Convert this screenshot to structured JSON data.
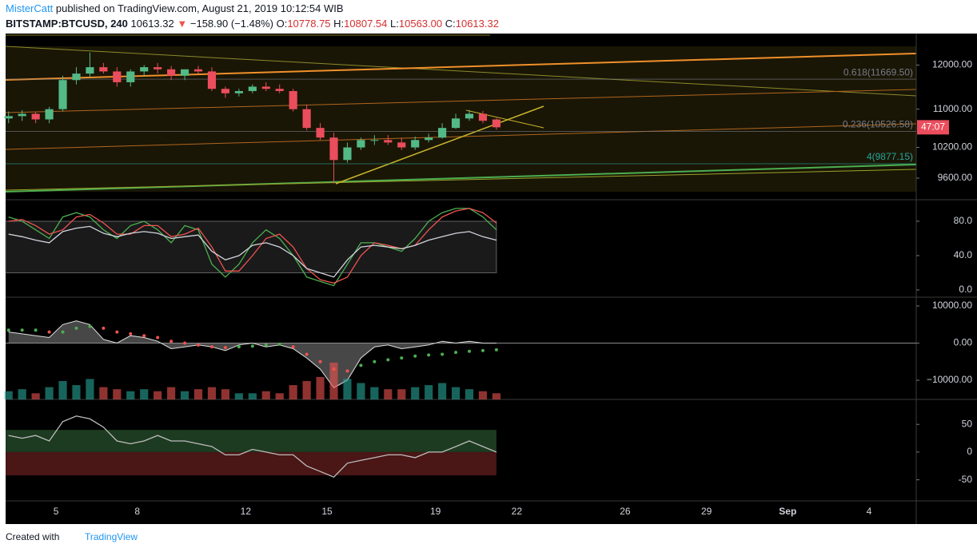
{
  "header": {
    "author": "MisterCatt",
    "published": "published on TradingView.com, August 21, 2019 10:12:54 WIB",
    "symbol": "BITSTAMP:BTCUSD, 240",
    "price": "10613.32",
    "arrow": "▼",
    "change": "−158.90 (−1.48%)",
    "ohlc": [
      {
        "label": "O:",
        "value": "10778.75"
      },
      {
        "label": "H:",
        "value": "10807.54"
      },
      {
        "label": "L:",
        "value": "10563.00"
      },
      {
        "label": "C:",
        "value": "10613.32"
      }
    ]
  },
  "footer": {
    "text": "Created with",
    "brand": "TradingView"
  },
  "chart_data": [
    {
      "type": "candlestick",
      "x": [
        3.25,
        3.75,
        4.25,
        4.75,
        5.25,
        5.75,
        6.25,
        6.75,
        7.25,
        7.75,
        8.25,
        8.75,
        9.25,
        9.75,
        10.25,
        10.75,
        11.25,
        11.75,
        12.25,
        12.75,
        13.25,
        13.75,
        14.25,
        14.75,
        15.25,
        15.75,
        16.25,
        16.75,
        17.25,
        17.75,
        18.25,
        18.75,
        19.25,
        19.75,
        20.25,
        20.75,
        21.25
      ],
      "open": [
        10800,
        10850,
        10900,
        10780,
        11000,
        11650,
        11800,
        11950,
        11850,
        11600,
        11850,
        11950,
        11900,
        11750,
        11900,
        11850,
        11450,
        11350,
        11400,
        11500,
        11450,
        11400,
        11000,
        10600,
        10400,
        9950,
        10200,
        10350,
        10350,
        10300,
        10200,
        10350,
        10400,
        10600,
        10800,
        10900,
        10778.75
      ],
      "high": [
        10950,
        10980,
        10950,
        11050,
        11750,
        11950,
        12300,
        12050,
        11950,
        11900,
        12000,
        12050,
        11980,
        11900,
        11980,
        11950,
        11500,
        11450,
        11550,
        11600,
        11550,
        11450,
        11100,
        10700,
        10500,
        10300,
        10400,
        10450,
        10450,
        10400,
        10420,
        10480,
        10700,
        10900,
        10980,
        10960,
        10807.54
      ],
      "low": [
        10700,
        10750,
        10700,
        10700,
        10950,
        11550,
        11700,
        11800,
        11500,
        11500,
        11750,
        11800,
        11650,
        11650,
        11800,
        11400,
        11250,
        11280,
        11350,
        11400,
        11350,
        10950,
        10550,
        10350,
        9500,
        9900,
        10150,
        10250,
        10250,
        10150,
        10150,
        10300,
        10380,
        10580,
        10750,
        10700,
        10563
      ],
      "close": [
        10850,
        10900,
        10780,
        11000,
        11650,
        11800,
        11950,
        11850,
        11600,
        11850,
        11950,
        11900,
        11750,
        11900,
        11850,
        11450,
        11350,
        11400,
        11500,
        11450,
        11400,
        11000,
        10600,
        10400,
        9950,
        10200,
        10350,
        10350,
        10300,
        10200,
        10350,
        10400,
        10600,
        10800,
        10900,
        10750,
        10613.32
      ],
      "up_color": "#53b987",
      "down_color": "#eb4d5c",
      "log_scale": true,
      "ylim": [
        9200,
        12730
      ],
      "yticks": [
        {
          "value": 9600,
          "label": "9600.00"
        },
        {
          "value": 10200,
          "label": "10200.00"
        },
        {
          "value": 11000,
          "label": "11000.00"
        },
        {
          "value": 12000,
          "label": "12000.00"
        }
      ],
      "xlim": [
        3.14,
        36.74
      ],
      "xticks": [
        5,
        8,
        12,
        15,
        19,
        22,
        26,
        29,
        {
          "value": 32,
          "label": "Sep"
        },
        {
          "value": 35,
          "label": "4"
        }
      ],
      "annotations": [
        {
          "text": "0.618(11669.50)",
          "value": 11669.5,
          "color": "#787b86"
        },
        {
          "text": "0.236(10526.58)",
          "value": 10526.58,
          "color": "#787b86"
        },
        {
          "text": "4(9877.15)",
          "value": 9877.15,
          "color": "#26a69a"
        }
      ],
      "countdown": "47:07"
    },
    {
      "type": "line",
      "x": [
        3.25,
        3.75,
        4.25,
        4.75,
        5.25,
        5.75,
        6.25,
        6.75,
        7.25,
        7.75,
        8.25,
        8.75,
        9.25,
        9.75,
        10.25,
        10.75,
        11.25,
        11.75,
        12.25,
        12.75,
        13.25,
        13.75,
        14.25,
        14.75,
        15.25,
        15.75,
        16.25,
        16.75,
        17.25,
        17.75,
        18.25,
        18.75,
        19.25,
        19.75,
        20.25,
        20.75,
        21.25
      ],
      "ylim": [
        -8.4,
        105.1
      ],
      "yticks": [
        {
          "value": 0,
          "label": "0.0"
        },
        {
          "value": 40,
          "label": "40.0"
        },
        {
          "value": 80,
          "label": "80.0"
        }
      ],
      "band": [
        20,
        80
      ],
      "series": [
        {
          "color": "#4caf50",
          "values": [
            85,
            80,
            70,
            60,
            85,
            90,
            85,
            70,
            60,
            75,
            80,
            70,
            55,
            75,
            70,
            30,
            15,
            30,
            55,
            70,
            60,
            40,
            15,
            10,
            5,
            30,
            55,
            55,
            50,
            45,
            60,
            80,
            90,
            95,
            95,
            85,
            70
          ]
        },
        {
          "color": "#ef5350",
          "values": [
            80,
            82,
            75,
            65,
            70,
            85,
            88,
            78,
            65,
            65,
            75,
            75,
            62,
            65,
            72,
            50,
            22,
            22,
            40,
            60,
            65,
            50,
            25,
            12,
            8,
            15,
            40,
            55,
            52,
            48,
            52,
            70,
            85,
            92,
            95,
            90,
            78
          ]
        },
        {
          "color": "#d1d4dc",
          "values": [
            65,
            62,
            58,
            55,
            68,
            72,
            74,
            66,
            62,
            66,
            68,
            66,
            60,
            62,
            64,
            45,
            35,
            40,
            52,
            55,
            50,
            40,
            25,
            20,
            15,
            35,
            50,
            52,
            50,
            48,
            52,
            58,
            62,
            66,
            68,
            62,
            58
          ]
        }
      ]
    },
    {
      "type": "line",
      "x": [
        3.25,
        3.75,
        4.25,
        4.75,
        5.25,
        5.75,
        6.25,
        6.75,
        7.25,
        7.75,
        8.25,
        8.75,
        9.25,
        9.75,
        10.25,
        10.75,
        11.25,
        11.75,
        12.25,
        12.75,
        13.25,
        13.75,
        14.25,
        14.75,
        15.25,
        15.75,
        16.25,
        16.75,
        17.25,
        17.75,
        18.25,
        18.75,
        19.25,
        19.75,
        20.25,
        20.75,
        21.25
      ],
      "ylim": [
        -15160,
        12370
      ],
      "y2lim": [
        0,
        250
      ],
      "yticks": [
        {
          "value": -10000,
          "label": "−10000.00"
        },
        {
          "value": 0,
          "label": "0.00"
        },
        {
          "value": 10000,
          "label": "10000.00"
        }
      ],
      "series": [
        {
          "style": "area",
          "color": "#9e9e9e",
          "values": [
            3000,
            2500,
            2000,
            1500,
            5000,
            6000,
            5000,
            1000,
            0,
            2000,
            1500,
            500,
            -1500,
            -1000,
            -500,
            -1000,
            -2000,
            -500,
            0,
            -1000,
            -500,
            -1500,
            -4000,
            -7000,
            -12000,
            -10000,
            -4000,
            -1000,
            -500,
            -1500,
            -1000,
            -500,
            500,
            0,
            500,
            0,
            0
          ]
        },
        {
          "style": "dots",
          "up_color": "#4caf50",
          "down_color": "#ef5350",
          "values": [
            3500,
            3500,
            3500,
            3000,
            3000,
            4000,
            4500,
            4000,
            3000,
            2500,
            2000,
            1500,
            500,
            0,
            -500,
            -1000,
            -1200,
            -1000,
            -800,
            -500,
            -300,
            -1000,
            -3000,
            -5000,
            -7000,
            -7500,
            -6000,
            -5000,
            -4500,
            -4000,
            -3500,
            -3200,
            -3000,
            -2500,
            -2200,
            -2000,
            -1800
          ]
        },
        {
          "style": "bars",
          "axis": "y2",
          "up_color": "#26a69a",
          "down_color": "#ef5350",
          "values": [
            20,
            25,
            15,
            30,
            45,
            35,
            50,
            30,
            25,
            20,
            25,
            20,
            30,
            20,
            25,
            30,
            25,
            15,
            15,
            20,
            15,
            35,
            45,
            55,
            90,
            50,
            40,
            30,
            25,
            25,
            30,
            35,
            40,
            30,
            25,
            20,
            15
          ]
        }
      ]
    },
    {
      "type": "line",
      "x": [
        3.25,
        3.75,
        4.25,
        4.75,
        5.25,
        5.75,
        6.25,
        6.75,
        7.25,
        7.75,
        8.25,
        8.75,
        9.25,
        9.75,
        10.25,
        10.75,
        11.25,
        11.75,
        12.25,
        12.75,
        13.25,
        13.75,
        14.25,
        14.75,
        15.25,
        15.75,
        16.25,
        16.75,
        17.25,
        17.75,
        18.25,
        18.75,
        19.25,
        19.75,
        20.25,
        20.75,
        21.25
      ],
      "ylim": [
        -88,
        95
      ],
      "yticks": [
        -50,
        0,
        50
      ],
      "bands": [
        {
          "from": 0,
          "to": 40,
          "color": "#1d3b20"
        },
        {
          "from": 0,
          "to": -42,
          "color": "#4a1616"
        }
      ],
      "series": [
        {
          "color": "#bdbdbd",
          "values": [
            30,
            25,
            30,
            20,
            55,
            65,
            60,
            45,
            20,
            15,
            20,
            30,
            20,
            20,
            15,
            10,
            -5,
            -5,
            5,
            0,
            -5,
            -5,
            -25,
            -35,
            -45,
            -20,
            -15,
            -10,
            -5,
            -5,
            -10,
            0,
            0,
            10,
            20,
            10,
            0
          ]
        }
      ]
    }
  ]
}
